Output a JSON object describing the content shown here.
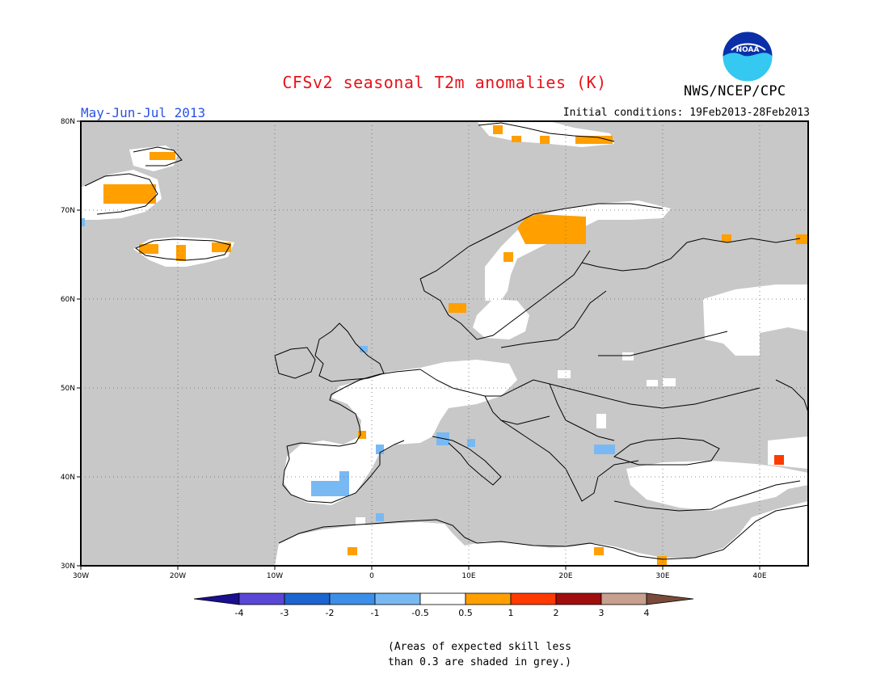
{
  "title": "CFSv2 seasonal T2m anomalies (K)",
  "agency": "NWS/NCEP/CPC",
  "logo_text": "NOAA",
  "period": "May-Jun-Jul 2013",
  "initial_conditions": "Initial conditions: 19Feb2013-28Feb2013",
  "note_line1": "(Areas of expected skill less",
  "note_line2": "than 0.3 are shaded in grey.)",
  "map": {
    "lon_range": [
      -30,
      45
    ],
    "lat_range": [
      30,
      80
    ],
    "lon_ticks": [
      "30W",
      "20W",
      "10W",
      "0",
      "10E",
      "20E",
      "30E",
      "40E"
    ],
    "lat_ticks": [
      "30N",
      "40N",
      "50N",
      "60N",
      "70N",
      "80N"
    ],
    "colors": {
      "grey": "#c8c8c8",
      "white": "#ffffff"
    }
  },
  "colorbar": {
    "labels": [
      "-4",
      "-3",
      "-2",
      "-1",
      "-0.5",
      "0.5",
      "1",
      "2",
      "3",
      "4"
    ],
    "colors": [
      "#1a0f8f",
      "#5b47d6",
      "#1c64cf",
      "#3c8fe8",
      "#79b9f3",
      "#ffffff",
      "#ff9f00",
      "#ff3a00",
      "#a00d0d",
      "#c7a090",
      "#7a4a3a"
    ]
  }
}
